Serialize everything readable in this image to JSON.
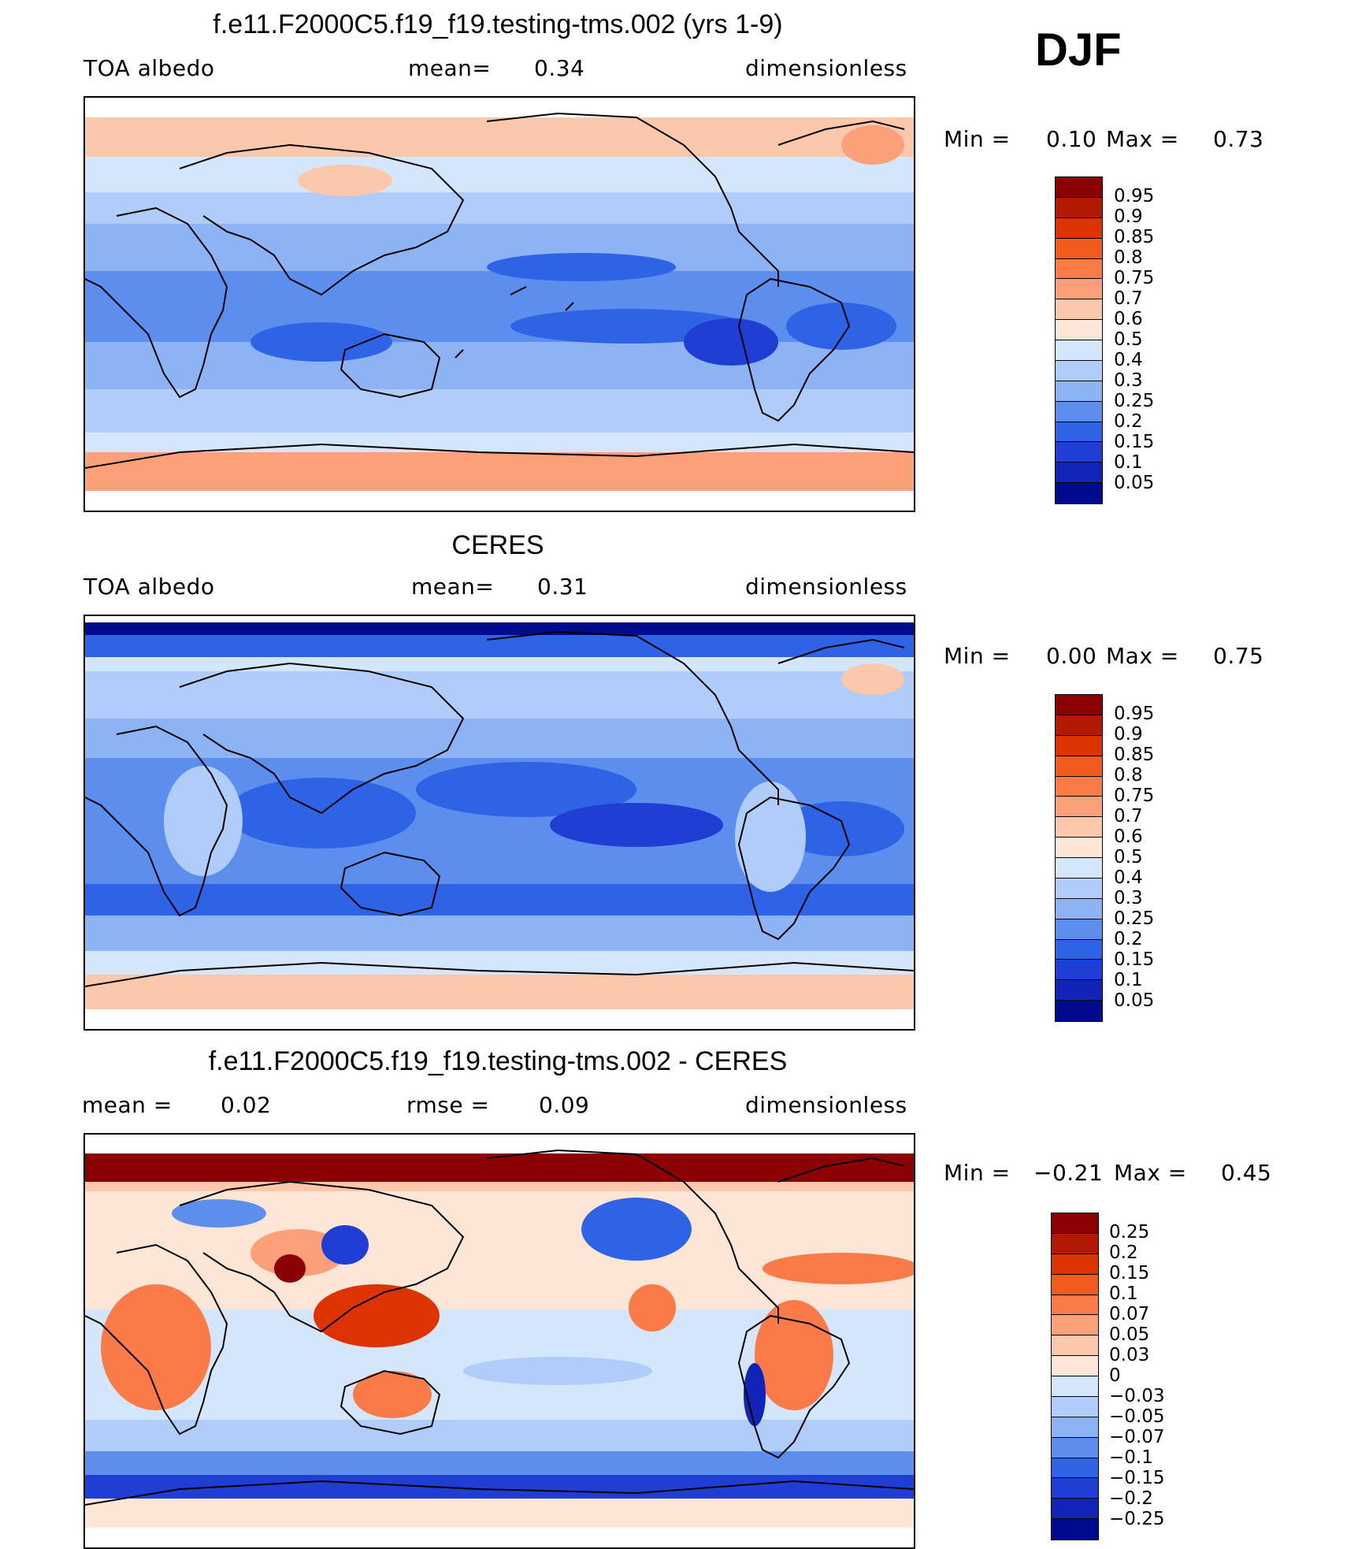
{
  "season": "DJF",
  "panels": [
    {
      "title": "f.e11.F2000C5.f19_f19.testing-tms.002 (yrs 1-9)",
      "left_label": "TOA albedo",
      "center_label": "mean=",
      "center_value": "0.34",
      "right_label": "dimensionless",
      "min_label": "Min =",
      "min_value": "0.10",
      "max_label": "Max =",
      "max_value": "0.73",
      "map": "model TOA albedo field",
      "colorbar": {
        "labels": [
          "0.95",
          "0.9",
          "0.85",
          "0.8",
          "0.75",
          "0.7",
          "0.6",
          "0.5",
          "0.4",
          "0.3",
          "0.25",
          "0.2",
          "0.15",
          "0.1",
          "0.05"
        ],
        "colors": [
          "#8b0000",
          "#b21a00",
          "#dd3300",
          "#f25a1e",
          "#fa7a48",
          "#fca07a",
          "#fcc8ac",
          "#fde6d6",
          "#d4e6fb",
          "#b0cdfa",
          "#8db3f5",
          "#5c8eee",
          "#2e63e6",
          "#1e3ed4",
          "#1224b8",
          "#000a8c"
        ]
      },
      "chart_data": {
        "type": "heatmap",
        "title": "f.e11.F2000C5.f19_f19.testing-tms.002 (yrs 1-9)",
        "variable": "TOA albedo",
        "units": "dimensionless",
        "mean": 0.34,
        "min": 0.1,
        "max": 0.73,
        "levels": [
          0.05,
          0.1,
          0.15,
          0.2,
          0.25,
          0.3,
          0.4,
          0.5,
          0.6,
          0.7,
          0.75,
          0.8,
          0.85,
          0.9,
          0.95
        ]
      }
    },
    {
      "title": "CERES",
      "left_label": "TOA albedo",
      "center_label": "mean=",
      "center_value": "0.31",
      "right_label": "dimensionless",
      "min_label": "Min =",
      "min_value": "0.00",
      "max_label": "Max =",
      "max_value": "0.75",
      "map": "observed TOA albedo field",
      "colorbar": {
        "labels": [
          "0.95",
          "0.9",
          "0.85",
          "0.8",
          "0.75",
          "0.7",
          "0.6",
          "0.5",
          "0.4",
          "0.3",
          "0.25",
          "0.2",
          "0.15",
          "0.1",
          "0.05"
        ],
        "colors": [
          "#8b0000",
          "#b21a00",
          "#dd3300",
          "#f25a1e",
          "#fa7a48",
          "#fca07a",
          "#fcc8ac",
          "#fde6d6",
          "#d4e6fb",
          "#b0cdfa",
          "#8db3f5",
          "#5c8eee",
          "#2e63e6",
          "#1e3ed4",
          "#1224b8",
          "#000a8c"
        ]
      },
      "chart_data": {
        "type": "heatmap",
        "title": "CERES",
        "variable": "TOA albedo",
        "units": "dimensionless",
        "mean": 0.31,
        "min": 0.0,
        "max": 0.75,
        "levels": [
          0.05,
          0.1,
          0.15,
          0.2,
          0.25,
          0.3,
          0.4,
          0.5,
          0.6,
          0.7,
          0.75,
          0.8,
          0.85,
          0.9,
          0.95
        ]
      }
    },
    {
      "title": "f.e11.F2000C5.f19_f19.testing-tms.002 - CERES",
      "left_label": "mean =",
      "left_value": "0.02",
      "center_label": "rmse =",
      "center_value": "0.09",
      "right_label": "dimensionless",
      "min_label": "Min =",
      "min_value": "−0.21",
      "max_label": "Max =",
      "max_value": "0.45",
      "map": "difference field (model minus CERES)",
      "colorbar": {
        "labels": [
          "0.25",
          "0.2",
          "0.15",
          "0.1",
          "0.07",
          "0.05",
          "0.03",
          "0",
          "−0.03",
          "−0.05",
          "−0.07",
          "−0.1",
          "−0.15",
          "−0.2",
          "−0.25"
        ],
        "colors": [
          "#8b0000",
          "#b21a00",
          "#dd3300",
          "#f25a1e",
          "#fa7a48",
          "#fca07a",
          "#fcc8ac",
          "#fde6d6",
          "#d4e6fb",
          "#b0cdfa",
          "#8db3f5",
          "#5c8eee",
          "#2e63e6",
          "#1e3ed4",
          "#1224b8",
          "#000a8c"
        ]
      },
      "chart_data": {
        "type": "heatmap",
        "title": "f.e11.F2000C5.f19_f19.testing-tms.002 - CERES",
        "units": "dimensionless",
        "mean": 0.02,
        "rmse": 0.09,
        "min": -0.21,
        "max": 0.45,
        "levels": [
          -0.25,
          -0.2,
          -0.15,
          -0.1,
          -0.07,
          -0.05,
          -0.03,
          0,
          0.03,
          0.05,
          0.07,
          0.1,
          0.15,
          0.2,
          0.25
        ]
      }
    }
  ]
}
